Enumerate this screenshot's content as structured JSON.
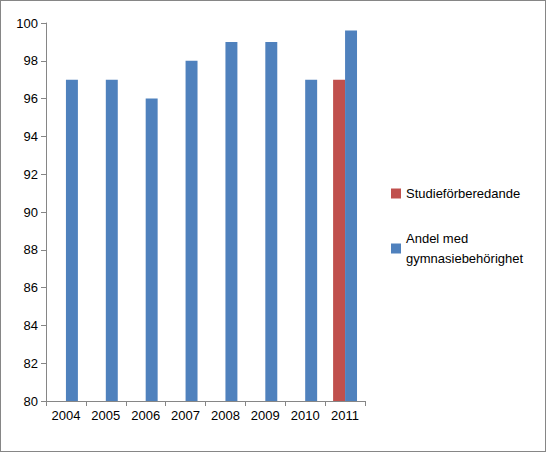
{
  "chart_data": {
    "type": "bar",
    "categories": [
      "2004",
      "2005",
      "2006",
      "2007",
      "2008",
      "2009",
      "2010",
      "2011"
    ],
    "series": [
      {
        "name": "Studieförberedande",
        "color": "#c0504d",
        "values": [
          null,
          null,
          null,
          null,
          null,
          null,
          null,
          97
        ]
      },
      {
        "name": "Andel med gymnasiebehörighet",
        "color": "#4f81bd",
        "values": [
          97,
          97,
          96,
          98,
          99,
          99,
          97,
          99.6
        ]
      }
    ],
    "ylim": [
      80,
      100
    ],
    "yticks": [
      80,
      82,
      84,
      86,
      88,
      90,
      92,
      94,
      96,
      98,
      100
    ],
    "grid": false,
    "legend": "right"
  }
}
